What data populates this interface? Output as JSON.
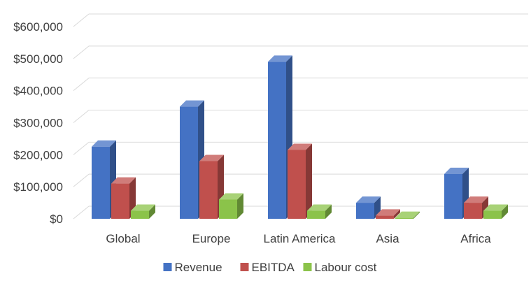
{
  "chart_data": {
    "type": "bar",
    "style": "3d-clustered-column",
    "categories": [
      "Global",
      "Europe",
      "Latin America",
      "Asia",
      "Africa"
    ],
    "series": [
      {
        "name": "Revenue",
        "values": [
          225000,
          350000,
          490000,
          50000,
          140000
        ],
        "color": "#4472c4"
      },
      {
        "name": "EBITDA",
        "values": [
          110000,
          180000,
          215000,
          10000,
          50000
        ],
        "color": "#c0504d"
      },
      {
        "name": "Labour cost",
        "values": [
          25000,
          60000,
          25000,
          3000,
          25000
        ],
        "color": "#8bc34a"
      }
    ],
    "y_tick_labels": [
      "$0",
      "$100,000",
      "$200,000",
      "$300,000",
      "$400,000",
      "$500,000",
      "$600,000"
    ],
    "y_ticks": [
      0,
      100000,
      200000,
      300000,
      400000,
      500000,
      600000
    ],
    "ylim": [
      0,
      600000
    ],
    "title": "",
    "xlabel": "",
    "ylabel": "",
    "grid": true,
    "legend": "bottom"
  }
}
